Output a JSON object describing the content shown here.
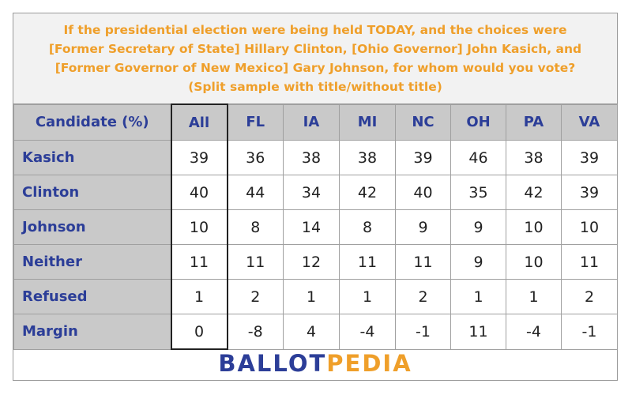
{
  "title_lines": [
    "If the presidential election were being held TODAY, and the choices were",
    "[Former Secretary of State] Hillary Clinton, [Ohio Governor] John Kasich, and",
    "[Former Governor of New Mexico] Gary Johnson, for whom would you vote?",
    "(Split sample with title/without title)"
  ],
  "header": {
    "candidate": "Candidate (%)",
    "columns": [
      "All",
      "FL",
      "IA",
      "MI",
      "NC",
      "OH",
      "PA",
      "VA"
    ]
  },
  "rows": [
    {
      "label": "Kasich",
      "values": [
        "39",
        "36",
        "38",
        "38",
        "39",
        "46",
        "38",
        "39"
      ]
    },
    {
      "label": "Clinton",
      "values": [
        "40",
        "44",
        "34",
        "42",
        "40",
        "35",
        "42",
        "39"
      ]
    },
    {
      "label": "Johnson",
      "values": [
        "10",
        "8",
        "14",
        "8",
        "9",
        "9",
        "10",
        "10"
      ]
    },
    {
      "label": "Neither",
      "values": [
        "11",
        "11",
        "12",
        "11",
        "11",
        "9",
        "10",
        "11"
      ]
    },
    {
      "label": "Refused",
      "values": [
        "1",
        "2",
        "1",
        "1",
        "2",
        "1",
        "1",
        "2"
      ]
    },
    {
      "label": "Margin",
      "values": [
        "0",
        "-8",
        "4",
        "-4",
        "-1",
        "11",
        "-4",
        "-1"
      ]
    }
  ],
  "logo": {
    "part1": "BALLOT",
    "part2": "PEDIA"
  },
  "colors": {
    "title": "#ef9f2a",
    "label": "#2c3e98",
    "header_bg": "#c9c9c9"
  },
  "chart_data": {
    "type": "table",
    "title": "If the presidential election were being held TODAY, and the choices were [Former Secretary of State] Hillary Clinton, [Ohio Governor] John Kasich, and [Former Governor of New Mexico] Gary Johnson, for whom would you vote? (Split sample with title/without title)",
    "columns": [
      "Candidate (%)",
      "All",
      "FL",
      "IA",
      "MI",
      "NC",
      "OH",
      "PA",
      "VA"
    ],
    "rows": [
      [
        "Kasich",
        39,
        36,
        38,
        38,
        39,
        46,
        38,
        39
      ],
      [
        "Clinton",
        40,
        44,
        34,
        42,
        40,
        35,
        42,
        39
      ],
      [
        "Johnson",
        10,
        8,
        14,
        8,
        9,
        9,
        10,
        10
      ],
      [
        "Neither",
        11,
        11,
        12,
        11,
        11,
        9,
        10,
        11
      ],
      [
        "Refused",
        1,
        2,
        1,
        1,
        2,
        1,
        1,
        2
      ],
      [
        "Margin",
        0,
        -8,
        4,
        -4,
        -1,
        11,
        -4,
        -1
      ]
    ]
  }
}
